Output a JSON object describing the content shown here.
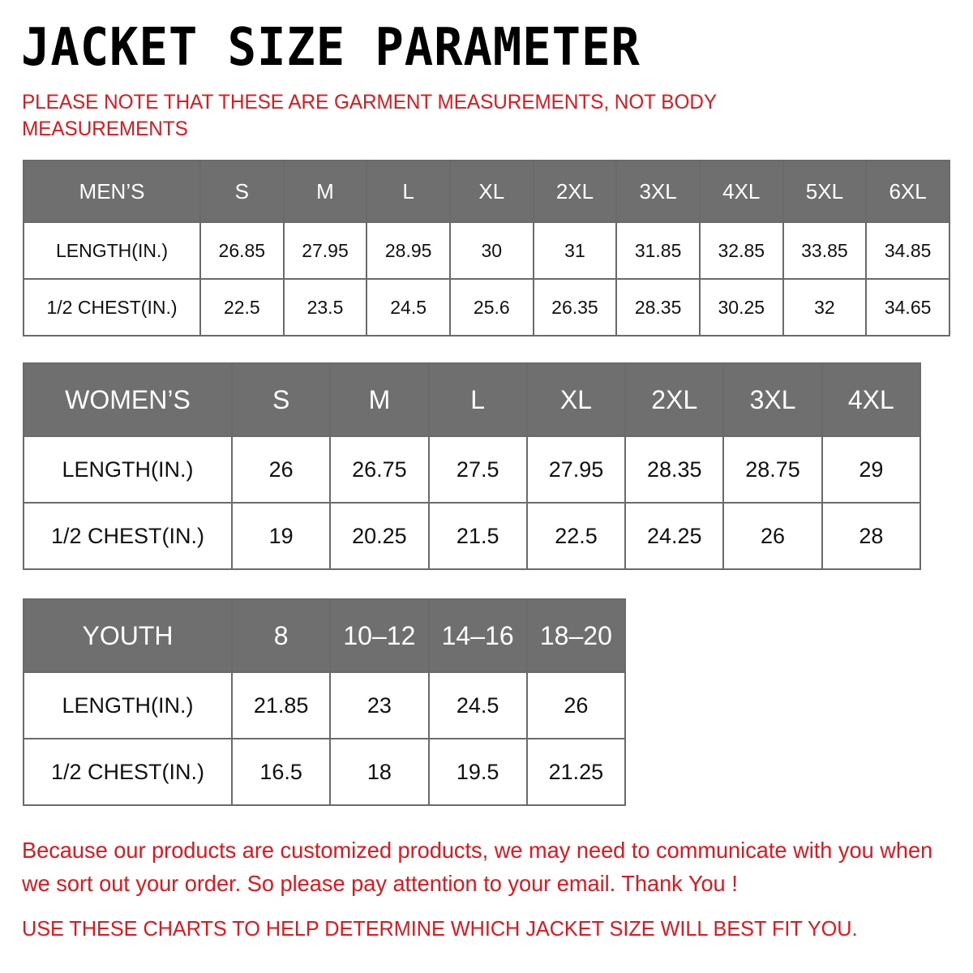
{
  "title": "JACKET  SIZE  PARAMETER",
  "note": "PLEASE NOTE THAT THESE ARE GARMENT MEASUREMENTS, NOT BODY MEASUREMENTS",
  "colors": {
    "header_bg": "#6f6f6f",
    "accent_red": "#e8141a"
  },
  "tables": [
    {
      "id": "men",
      "headers": [
        "MEN’S",
        "S",
        "M",
        "L",
        "XL",
        "2XL",
        "3XL",
        "4XL",
        "5XL",
        "6XL"
      ],
      "rows": [
        [
          "LENGTH(IN.)",
          "26.85",
          "27.95",
          "28.95",
          "30",
          "31",
          "31.85",
          "32.85",
          "33.85",
          "34.85"
        ],
        [
          "1/2 CHEST(IN.)",
          "22.5",
          "23.5",
          "24.5",
          "25.6",
          "26.35",
          "28.35",
          "30.25",
          "32",
          "34.65"
        ]
      ]
    },
    {
      "id": "women",
      "headers": [
        "WOMEN’S",
        "S",
        "M",
        "L",
        "XL",
        "2XL",
        "3XL",
        "4XL"
      ],
      "rows": [
        [
          "LENGTH(IN.)",
          "26",
          "26.75",
          "27.5",
          "27.95",
          "28.35",
          "28.75",
          "29"
        ],
        [
          "1/2 CHEST(IN.)",
          "19",
          "20.25",
          "21.5",
          "22.5",
          "24.25",
          "26",
          "28"
        ]
      ]
    },
    {
      "id": "youth",
      "headers": [
        "YOUTH",
        "8",
        "10–12",
        "14–16",
        "18–20"
      ],
      "rows": [
        [
          "LENGTH(IN.)",
          "21.85",
          "23",
          "24.5",
          "26"
        ],
        [
          "1/2 CHEST(IN.)",
          "16.5",
          "18",
          "19.5",
          "21.25"
        ]
      ]
    }
  ],
  "footer": {
    "message": "Because our products are customized products, we may need to communicate with you when we sort out your order. So please pay attention to your email. Thank You !",
    "instruction": "USE THESE CHARTS TO HELP DETERMINE WHICH JACKET SIZE WILL BEST FIT YOU."
  }
}
